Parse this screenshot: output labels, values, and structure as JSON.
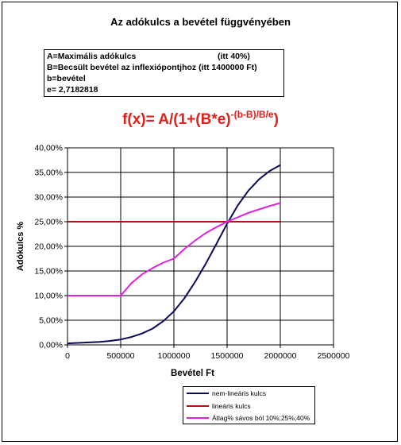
{
  "title": "Az adókulcs a bevétel függvényében",
  "definitions": [
    {
      "text": "A=Maximális adókulcs",
      "note": "(itt 40%)"
    },
    {
      "text": "B=Becsült bevétel az inflexiópontjhoz (itt 1400000 Ft)",
      "note": ""
    },
    {
      "text": "b=bevétel",
      "note": ""
    },
    {
      "text": "e= 2,7182818",
      "note": ""
    }
  ],
  "formula": {
    "main": "f(x)= A/(1+(B*e)",
    "exponent": "-(b-B)/B/e",
    "close": ")"
  },
  "colors": {
    "nonlinear": "#0a0a5c",
    "linear": "#b01010",
    "average": "#e020e0",
    "formula": "#e0201a"
  },
  "chart_data": {
    "type": "line",
    "xlabel": "Bevétel Ft",
    "ylabel": "Adókulcs %",
    "xlim": [
      0,
      2500000
    ],
    "ylim": [
      0,
      40
    ],
    "x_ticks": [
      "0",
      "500000",
      "1000000",
      "1500000",
      "2000000",
      "2500000"
    ],
    "y_ticks": [
      "0,00%",
      "5,00%",
      "10,00%",
      "15,00%",
      "20,00%",
      "25,00%",
      "30,00%",
      "35,00%",
      "40,00%"
    ],
    "grid": "vertical and horizontal",
    "legend_position": "bottom",
    "series": [
      {
        "name": "nem-lineáris kulcs",
        "x": [
          0,
          100000,
          200000,
          300000,
          400000,
          500000,
          600000,
          700000,
          800000,
          900000,
          1000000,
          1100000,
          1200000,
          1300000,
          1400000,
          1500000,
          1600000,
          1700000,
          1800000,
          1900000,
          2000000
        ],
        "y": [
          0.3,
          0.4,
          0.5,
          0.6,
          0.8,
          1.1,
          1.6,
          2.3,
          3.3,
          4.8,
          6.8,
          9.5,
          12.8,
          16.5,
          20.5,
          24.6,
          28.3,
          31.3,
          33.6,
          35.3,
          36.5
        ]
      },
      {
        "name": "lineáris kulcs",
        "x": [
          0,
          2000000
        ],
        "y": [
          25,
          25
        ]
      },
      {
        "name": "Átlag% sávos ból 10%;25%;40%",
        "x": [
          0,
          500000,
          600000,
          700000,
          800000,
          900000,
          1000000,
          1100000,
          1200000,
          1300000,
          1400000,
          1500000,
          1600000,
          1700000,
          1800000,
          1900000,
          2000000
        ],
        "y": [
          10,
          10,
          12.5,
          14.3,
          15.6,
          16.7,
          17.5,
          19.5,
          21.2,
          22.7,
          23.9,
          25,
          25.9,
          26.8,
          27.5,
          28.2,
          28.8
        ]
      }
    ]
  }
}
